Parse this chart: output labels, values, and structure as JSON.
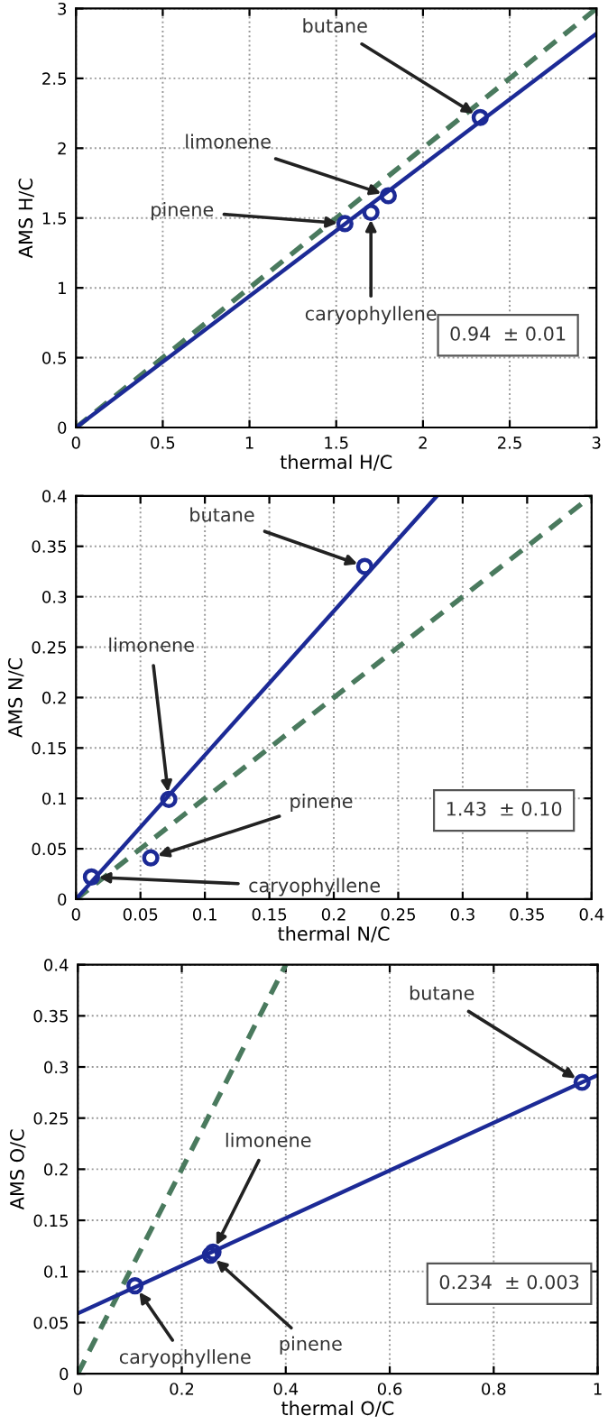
{
  "chart_data": [
    {
      "type": "scatter",
      "xlabel": "thermal H/C",
      "ylabel": "AMS H/C",
      "xlim": [
        0,
        3
      ],
      "ylim": [
        0,
        3
      ],
      "xticks": [
        0,
        0.5,
        1,
        1.5,
        2,
        2.5,
        3
      ],
      "yticks": [
        0,
        0.5,
        1,
        1.5,
        2,
        2.5,
        3
      ],
      "grid": true,
      "series": [
        {
          "type": "line",
          "color": "#4a7a5e",
          "line_style": "dashed",
          "marker": "none",
          "x": [
            0,
            3
          ],
          "values": [
            0,
            3
          ]
        },
        {
          "type": "line",
          "color": "#1c2a96",
          "line_style": "solid",
          "marker": "none",
          "x": [
            0,
            3
          ],
          "values": [
            0,
            2.82
          ]
        },
        {
          "color": "#1c2a96",
          "marker": "circle",
          "x": [
            1.55,
            1.7,
            1.8,
            2.33
          ],
          "values": [
            1.46,
            1.54,
            1.66,
            2.22
          ]
        }
      ],
      "annotations": [
        {
          "text": "butane",
          "x": 2.33,
          "y": 2.22
        },
        {
          "text": "limonene",
          "x": 1.8,
          "y": 1.66
        },
        {
          "text": "pinene",
          "x": 1.55,
          "y": 1.46
        },
        {
          "text": "caryophyllene",
          "x": 1.7,
          "y": 1.54
        },
        "0.94  ± 0.01"
      ]
    },
    {
      "type": "scatter",
      "xlabel": "thermal N/C",
      "ylabel": "AMS N/C",
      "xlim": [
        0,
        0.4
      ],
      "ylim": [
        0,
        0.4
      ],
      "xticks": [
        0,
        0.05,
        0.1,
        0.15,
        0.2,
        0.25,
        0.3,
        0.35,
        0.4
      ],
      "yticks": [
        0,
        0.05,
        0.1,
        0.15,
        0.2,
        0.25,
        0.3,
        0.35,
        0.4
      ],
      "grid": true,
      "series": [
        {
          "type": "line",
          "color": "#4a7a5e",
          "line_style": "dashed",
          "marker": "none",
          "x": [
            0,
            0.4
          ],
          "values": [
            0,
            0.4
          ]
        },
        {
          "type": "line",
          "color": "#1c2a96",
          "line_style": "solid",
          "marker": "none",
          "x": [
            0,
            0.28
          ],
          "values": [
            0,
            0.4
          ]
        },
        {
          "color": "#1c2a96",
          "marker": "circle",
          "x": [
            0.224,
            0.072,
            0.058,
            0.012
          ],
          "values": [
            0.33,
            0.099,
            0.041,
            0.022
          ]
        }
      ],
      "annotations": [
        {
          "text": "butane",
          "x": 0.224,
          "y": 0.33
        },
        {
          "text": "limonene",
          "x": 0.072,
          "y": 0.099
        },
        {
          "text": "pinene",
          "x": 0.058,
          "y": 0.041
        },
        {
          "text": "caryophyllene",
          "x": 0.012,
          "y": 0.022
        },
        "1.43  ± 0.10"
      ]
    },
    {
      "type": "scatter",
      "xlabel": "thermal O/C",
      "ylabel": "AMS O/C",
      "xlim": [
        0,
        1
      ],
      "ylim": [
        0,
        0.4
      ],
      "xticks": [
        0,
        0.2,
        0.4,
        0.6,
        0.8,
        1
      ],
      "yticks": [
        0,
        0.05,
        0.1,
        0.15,
        0.2,
        0.25,
        0.3,
        0.35,
        0.4
      ],
      "grid": true,
      "series": [
        {
          "type": "line",
          "color": "#4a7a5e",
          "line_style": "dashed",
          "marker": "none",
          "x": [
            0,
            0.4
          ],
          "values": [
            0,
            0.4
          ]
        },
        {
          "type": "line",
          "color": "#1c2a96",
          "line_style": "solid",
          "marker": "none",
          "x": [
            0,
            1
          ],
          "values": [
            0.059,
            0.292
          ]
        },
        {
          "color": "#1c2a96",
          "marker": "circle",
          "x": [
            0.97,
            0.26,
            0.255,
            0.11
          ],
          "values": [
            0.285,
            0.119,
            0.116,
            0.086
          ]
        }
      ],
      "annotations": [
        {
          "text": "butane",
          "x": 0.97,
          "y": 0.285
        },
        {
          "text": "limonene",
          "x": 0.26,
          "y": 0.119
        },
        {
          "text": "pinene",
          "x": 0.255,
          "y": 0.116
        },
        {
          "text": "caryophyllene",
          "x": 0.11,
          "y": 0.086
        },
        "0.234  ± 0.003"
      ]
    }
  ]
}
